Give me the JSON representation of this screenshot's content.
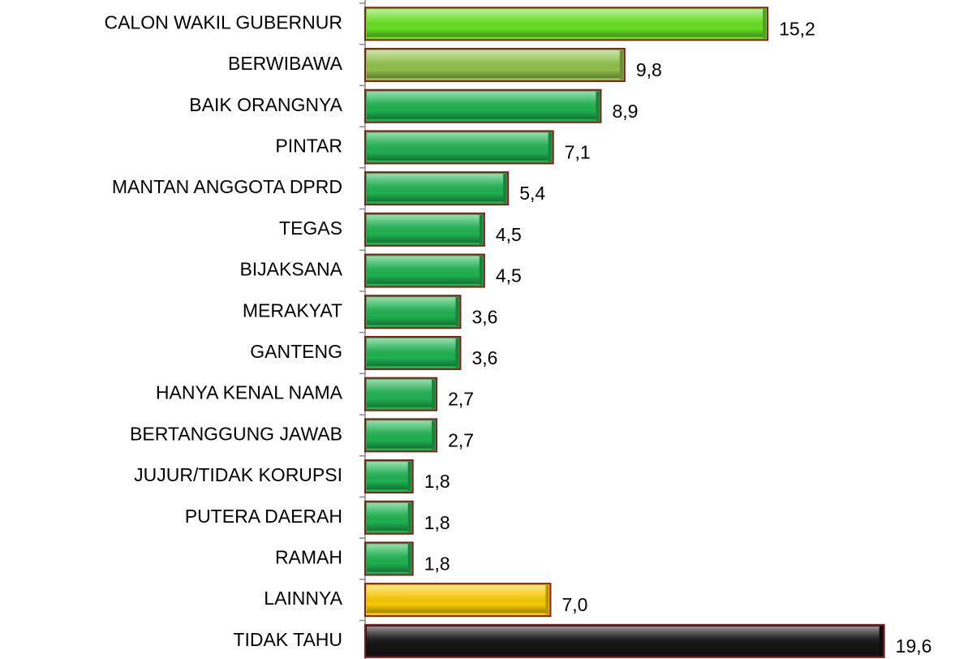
{
  "chart_data": {
    "type": "barh",
    "categories": [
      "CALON WAKIL GUBERNUR",
      "BERWIBAWA",
      "BAIK ORANGNYA",
      "PINTAR",
      "MANTAN ANGGOTA DPRD",
      "TEGAS",
      "BIJAKSANA",
      "MERAKYAT",
      "GANTENG",
      "HANYA KENAL NAMA",
      "BERTANGGUNG JAWAB",
      "JUJUR/TIDAK KORUPSI",
      "PUTERA DAERAH",
      "RAMAH",
      "LAINNYA",
      "TIDAK TAHU"
    ],
    "values": [
      15.2,
      9.8,
      8.9,
      7.1,
      5.4,
      4.5,
      4.5,
      3.6,
      3.6,
      2.7,
      2.7,
      1.8,
      1.8,
      1.8,
      7.0,
      19.6
    ],
    "value_labels": [
      "15,2",
      "9,8",
      "8,9",
      "7,1",
      "5,4",
      "4,5",
      "4,5",
      "3,6",
      "3,6",
      "2,7",
      "2,7",
      "1,8",
      "1,8",
      "1,8",
      "7,0",
      "19,6"
    ],
    "colors": [
      "#66dd22",
      "#8fbf4a",
      "#1fb050",
      "#1fb050",
      "#1fb050",
      "#1fb050",
      "#1fb050",
      "#1fb050",
      "#1fb050",
      "#1fb050",
      "#1fb050",
      "#1fb050",
      "#1fb050",
      "#1fb050",
      "#f5c800",
      "#151515"
    ],
    "xlim": [
      0,
      22
    ]
  }
}
